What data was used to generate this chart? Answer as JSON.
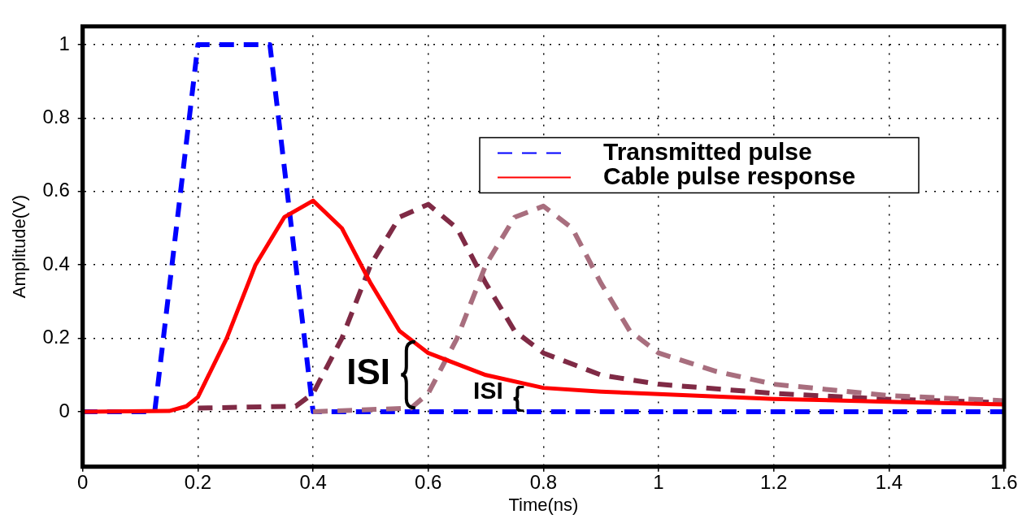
{
  "chart_data": {
    "type": "line",
    "xlabel": "Time(ns)",
    "ylabel": "Amplitude(V)",
    "xlim": [
      0,
      1.6
    ],
    "xticks": [
      0,
      0.2,
      0.4,
      0.6,
      0.8,
      1,
      1.2,
      1.4,
      1.6
    ],
    "ylim": [
      -0.15,
      1.05
    ],
    "yticks": [
      0,
      0.2,
      0.4,
      0.6,
      0.8,
      1
    ],
    "grid": true,
    "legend": "top right",
    "marker": "none",
    "series": [
      {
        "name": "Transmitted pulse",
        "color": "#0000ff",
        "line_style": "dashed",
        "x": [
          0,
          0.125,
          0.2,
          0.325,
          0.4,
          1.6
        ],
        "values": [
          0,
          0,
          1,
          1,
          0,
          0
        ]
      },
      {
        "name": "Cable pulse response",
        "color": "#ff0000",
        "line_style": "solid",
        "x": [
          0,
          0.15,
          0.18,
          0.2,
          0.25,
          0.3,
          0.35,
          0.4,
          0.45,
          0.5,
          0.55,
          0.6,
          0.7,
          0.8,
          0.9,
          1.0,
          1.2,
          1.4,
          1.6
        ],
        "values": [
          0,
          0.002,
          0.015,
          0.04,
          0.2,
          0.4,
          0.53,
          0.575,
          0.5,
          0.35,
          0.22,
          0.16,
          0.1,
          0.065,
          0.055,
          0.048,
          0.035,
          0.027,
          0.02
        ]
      },
      {
        "color": "#7f2a45",
        "line_style": "dashed",
        "x": [
          0.2,
          0.37,
          0.4,
          0.45,
          0.5,
          0.55,
          0.6,
          0.65,
          0.7,
          0.75,
          0.8,
          0.9,
          1.0,
          1.2,
          1.4,
          1.6
        ],
        "values": [
          0.01,
          0.015,
          0.05,
          0.2,
          0.4,
          0.53,
          0.565,
          0.5,
          0.35,
          0.22,
          0.16,
          0.1,
          0.075,
          0.05,
          0.034,
          0.025
        ]
      },
      {
        "color": "#a86e7e",
        "line_style": "dashed",
        "x": [
          0.4,
          0.57,
          0.6,
          0.65,
          0.7,
          0.75,
          0.8,
          0.85,
          0.9,
          0.95,
          1.0,
          1.1,
          1.2,
          1.4,
          1.6
        ],
        "values": [
          0,
          0.01,
          0.05,
          0.2,
          0.4,
          0.53,
          0.56,
          0.5,
          0.35,
          0.22,
          0.16,
          0.11,
          0.075,
          0.044,
          0.03
        ]
      }
    ],
    "annotations": [
      "ISI",
      "ISI"
    ]
  }
}
